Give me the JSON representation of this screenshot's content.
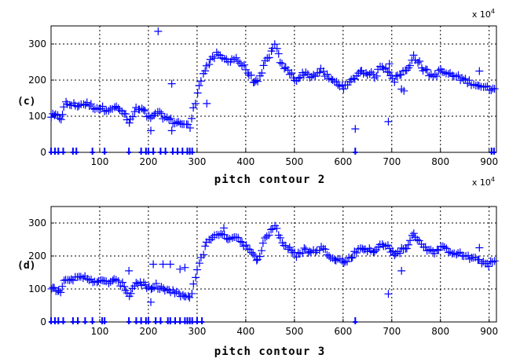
{
  "chart_data": [
    {
      "type": "scatter",
      "panel_label": "(c)",
      "xlabel": "pitch contour 2",
      "x_multiplier": "x 10",
      "x_multiplier_exp": "4",
      "xlim": [
        0,
        915
      ],
      "ylim": [
        0,
        350
      ],
      "x_ticks": [
        100,
        200,
        300,
        400,
        500,
        600,
        700,
        800,
        900
      ],
      "y_ticks": [
        0,
        100,
        200,
        300
      ],
      "grid": true,
      "marker": "+",
      "color": "#0000ff",
      "segments": [
        [
          0,
          100
        ],
        [
          10,
          100
        ],
        [
          20,
          95
        ],
        [
          30,
          135
        ],
        [
          50,
          130
        ],
        [
          70,
          135
        ],
        [
          90,
          125
        ],
        [
          110,
          120
        ],
        [
          130,
          125
        ],
        [
          150,
          110
        ],
        [
          160,
          80
        ],
        [
          175,
          120
        ],
        [
          190,
          115
        ],
        [
          205,
          90
        ],
        [
          215,
          110
        ],
        [
          230,
          100
        ],
        [
          250,
          85
        ],
        [
          270,
          80
        ],
        [
          285,
          70
        ],
        [
          305,
          190
        ],
        [
          320,
          240
        ],
        [
          340,
          270
        ],
        [
          360,
          255
        ],
        [
          380,
          260
        ],
        [
          400,
          230
        ],
        [
          415,
          200
        ],
        [
          425,
          190
        ],
        [
          440,
          250
        ],
        [
          460,
          295
        ],
        [
          475,
          240
        ],
        [
          490,
          220
        ],
        [
          505,
          200
        ],
        [
          520,
          220
        ],
        [
          535,
          210
        ],
        [
          555,
          225
        ],
        [
          575,
          200
        ],
        [
          590,
          190
        ],
        [
          605,
          180
        ],
        [
          635,
          225
        ],
        [
          650,
          220
        ],
        [
          665,
          210
        ],
        [
          680,
          240
        ],
        [
          695,
          225
        ],
        [
          705,
          200
        ],
        [
          720,
          220
        ],
        [
          735,
          230
        ],
        [
          745,
          270
        ],
        [
          765,
          230
        ],
        [
          785,
          210
        ],
        [
          800,
          225
        ],
        [
          820,
          215
        ],
        [
          840,
          205
        ],
        [
          860,
          195
        ],
        [
          880,
          185
        ],
        [
          900,
          175
        ],
        [
          915,
          185
        ]
      ],
      "outliers": [
        [
          220,
          335
        ],
        [
          248,
          190
        ],
        [
          205,
          60
        ],
        [
          248,
          60
        ],
        [
          320,
          135
        ],
        [
          625,
          65
        ],
        [
          693,
          85
        ],
        [
          720,
          175
        ],
        [
          725,
          170
        ],
        [
          695,
          245
        ],
        [
          880,
          225
        ]
      ],
      "zero_marks": [
        0,
        8,
        15,
        25,
        45,
        52,
        85,
        110,
        160,
        185,
        195,
        200,
        210,
        225,
        235,
        250,
        260,
        270,
        280,
        285,
        290,
        625,
        905,
        910
      ]
    },
    {
      "type": "scatter",
      "panel_label": "(d)",
      "xlabel": "pitch contour 3",
      "x_multiplier": "x 10",
      "x_multiplier_exp": "4",
      "xlim": [
        0,
        915
      ],
      "ylim": [
        0,
        350
      ],
      "x_ticks": [
        100,
        200,
        300,
        400,
        500,
        600,
        700,
        800,
        900
      ],
      "y_ticks": [
        0,
        100,
        200,
        300
      ],
      "grid": true,
      "marker": "+",
      "color": "#0000ff",
      "segments": [
        [
          0,
          100
        ],
        [
          10,
          100
        ],
        [
          20,
          95
        ],
        [
          30,
          135
        ],
        [
          50,
          130
        ],
        [
          70,
          135
        ],
        [
          90,
          125
        ],
        [
          110,
          120
        ],
        [
          130,
          125
        ],
        [
          150,
          110
        ],
        [
          160,
          80
        ],
        [
          175,
          120
        ],
        [
          190,
          115
        ],
        [
          205,
          95
        ],
        [
          215,
          110
        ],
        [
          230,
          100
        ],
        [
          250,
          90
        ],
        [
          270,
          80
        ],
        [
          285,
          70
        ],
        [
          305,
          180
        ],
        [
          320,
          240
        ],
        [
          340,
          270
        ],
        [
          360,
          255
        ],
        [
          380,
          260
        ],
        [
          400,
          230
        ],
        [
          415,
          200
        ],
        [
          425,
          190
        ],
        [
          440,
          250
        ],
        [
          460,
          295
        ],
        [
          475,
          240
        ],
        [
          490,
          220
        ],
        [
          505,
          200
        ],
        [
          520,
          220
        ],
        [
          535,
          210
        ],
        [
          555,
          225
        ],
        [
          575,
          200
        ],
        [
          590,
          190
        ],
        [
          605,
          180
        ],
        [
          635,
          225
        ],
        [
          650,
          220
        ],
        [
          665,
          210
        ],
        [
          680,
          240
        ],
        [
          695,
          225
        ],
        [
          705,
          200
        ],
        [
          720,
          220
        ],
        [
          735,
          230
        ],
        [
          745,
          270
        ],
        [
          765,
          230
        ],
        [
          785,
          210
        ],
        [
          800,
          225
        ],
        [
          820,
          215
        ],
        [
          840,
          205
        ],
        [
          860,
          195
        ],
        [
          880,
          185
        ],
        [
          900,
          175
        ],
        [
          915,
          185
        ]
      ],
      "outliers": [
        [
          160,
          155
        ],
        [
          210,
          175
        ],
        [
          230,
          175
        ],
        [
          245,
          175
        ],
        [
          265,
          160
        ],
        [
          275,
          165
        ],
        [
          205,
          60
        ],
        [
          355,
          285
        ],
        [
          693,
          85
        ],
        [
          720,
          155
        ],
        [
          880,
          225
        ]
      ],
      "zero_marks": [
        0,
        8,
        15,
        25,
        45,
        55,
        70,
        85,
        105,
        110,
        160,
        175,
        185,
        195,
        200,
        215,
        225,
        240,
        245,
        255,
        265,
        275,
        280,
        285,
        290,
        300,
        310,
        625
      ]
    }
  ]
}
